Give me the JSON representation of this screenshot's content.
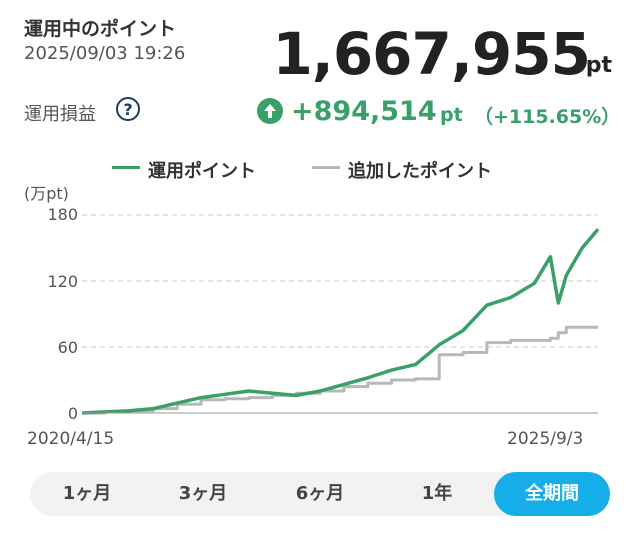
{
  "header": {
    "title": "運用中のポイント",
    "datetime": "2025/09/03 19:26",
    "total_points": "1,667,955",
    "total_unit": "pt"
  },
  "profit": {
    "label": "運用損益",
    "help_icon_text": "?",
    "amount": "+894,514",
    "unit": "pt",
    "percent": "（+115.65%）",
    "color": "#3aa06a"
  },
  "legend": [
    {
      "label": "運用ポイント",
      "color": "#3aa06a"
    },
    {
      "label": "追加したポイント",
      "color": "#b8b8b8"
    }
  ],
  "chart_data": {
    "type": "line",
    "y_unit_label": "(万pt)",
    "ylim": [
      0,
      180
    ],
    "yticks": [
      "180",
      "120",
      "60",
      "0"
    ],
    "grid": "dashed horizontal",
    "x_start_label": "2020/4/15",
    "x_end_label": "2025/9/3",
    "series": [
      {
        "name": "運用ポイント",
        "color": "#3aa06a",
        "x": [
          "2020-04",
          "2020-07",
          "2020-10",
          "2021-01",
          "2021-04",
          "2021-07",
          "2021-10",
          "2022-01",
          "2022-04",
          "2022-07",
          "2022-10",
          "2023-01",
          "2023-04",
          "2023-07",
          "2023-10",
          "2024-01",
          "2024-04",
          "2024-07",
          "2024-10",
          "2025-01",
          "2025-03",
          "2025-04",
          "2025-05",
          "2025-07",
          "2025-09"
        ],
        "y": [
          0,
          1,
          2,
          4,
          9,
          14,
          17,
          20,
          18,
          16,
          20,
          26,
          32,
          39,
          44,
          62,
          75,
          98,
          105,
          118,
          142,
          100,
          125,
          150,
          167
        ]
      },
      {
        "name": "追加したポイント",
        "color": "#b8b8b8",
        "x": [
          "2020-04",
          "2020-07",
          "2020-10",
          "2021-01",
          "2021-04",
          "2021-07",
          "2021-10",
          "2022-01",
          "2022-04",
          "2022-07",
          "2022-10",
          "2023-01",
          "2023-04",
          "2023-07",
          "2023-10",
          "2024-01",
          "2024-04",
          "2024-07",
          "2024-10",
          "2025-01",
          "2025-03",
          "2025-04",
          "2025-05",
          "2025-07",
          "2025-09"
        ],
        "y": [
          0,
          1,
          2,
          4,
          8,
          12,
          13,
          14,
          16,
          18,
          20,
          24,
          27,
          30,
          31,
          53,
          55,
          64,
          66,
          66,
          68,
          73,
          78,
          78,
          78
        ]
      }
    ]
  },
  "periods": [
    {
      "label": "1ヶ月",
      "active": false
    },
    {
      "label": "3ヶ月",
      "active": false
    },
    {
      "label": "6ヶ月",
      "active": false
    },
    {
      "label": "1年",
      "active": false
    },
    {
      "label": "全期間",
      "active": true
    }
  ]
}
